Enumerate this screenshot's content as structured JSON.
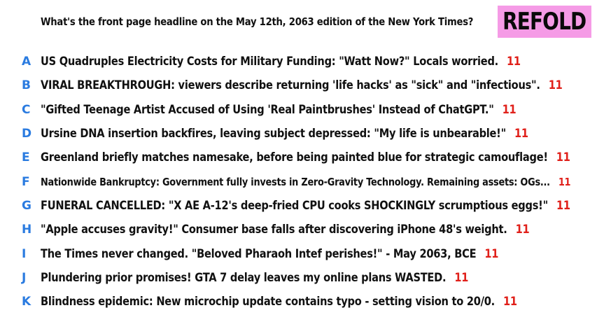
{
  "question": "What's the front page headline on the May 12th, 2063 edition of the New York Times?",
  "logo": "REFOLD",
  "colors": {
    "letter": "#2a7be0",
    "number": "#e0201a",
    "logo_bg": "#f59be6"
  },
  "answers": [
    {
      "letter": "A",
      "text": "US Quadruples Electricity Costs for Military Funding: \"Watt Now?\" Locals worried.",
      "count": "11"
    },
    {
      "letter": "B",
      "text": "VIRAL BREAKTHROUGH: viewers describe returning 'life hacks' as \"sick\" and \"infectious\".",
      "count": "11"
    },
    {
      "letter": "C",
      "text": "\"Gifted Teenage Artist Accused of Using 'Real Paintbrushes' Instead of ChatGPT.\"",
      "count": "11"
    },
    {
      "letter": "D",
      "text": "Ursine DNA insertion backfires, leaving subject depressed: \"My life is unbearable!\"",
      "count": "11"
    },
    {
      "letter": "E",
      "text": "Greenland briefly matches namesake, before being painted blue for strategic camouflage!",
      "count": "11"
    },
    {
      "letter": "F",
      "text": "Nationwide Bankruptcy: Government fully invests in Zero-Gravity Technology. Remaining assets: OGs...",
      "count": "11"
    },
    {
      "letter": "G",
      "text": "FUNERAL CANCELLED: \"X AE A-12's deep-fried CPU cooks SHOCKINGLY scrumptious eggs!\"",
      "count": "11"
    },
    {
      "letter": "H",
      "text": "\"Apple accuses gravity!\" Consumer base falls after discovering iPhone 48's weight.",
      "count": "11"
    },
    {
      "letter": "I",
      "text": "The Times never changed. \"Beloved Pharaoh Intef perishes!\" - May 2063, BCE",
      "count": "11"
    },
    {
      "letter": "J",
      "text": "Plundering prior promises! GTA 7 delay leaves my online plans WASTED.",
      "count": "11"
    },
    {
      "letter": "K",
      "text": "Blindness epidemic: New microchip update contains typo - setting vision to 20/0.",
      "count": "11"
    }
  ]
}
